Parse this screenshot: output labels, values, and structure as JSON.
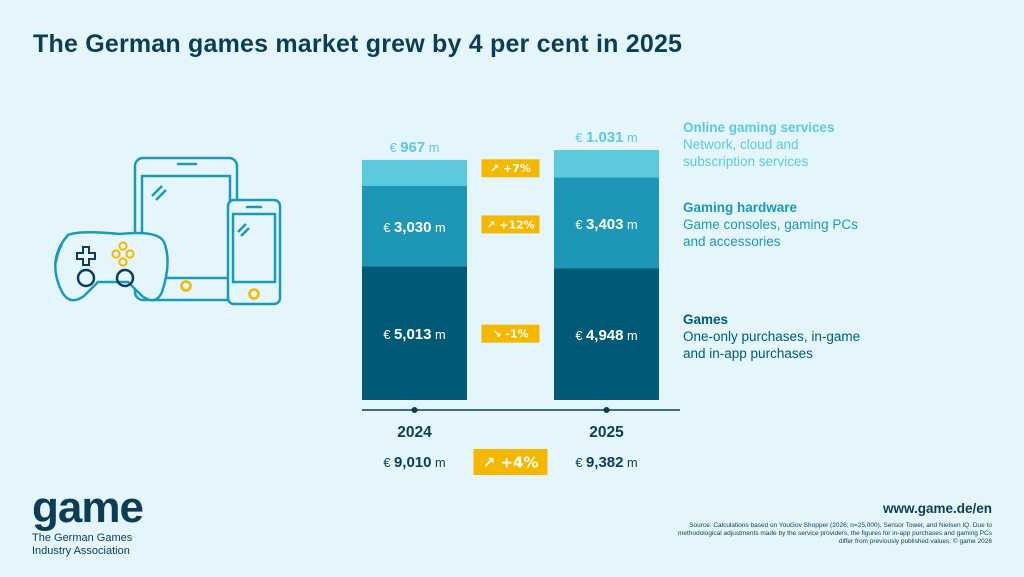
{
  "title": "The German games market grew by 4 per cent in 2025",
  "colors": {
    "background": "#e4f6fb",
    "online": "#5cc9dc",
    "hardware": "#1d97b5",
    "games": "#005a75",
    "badge": "#f5b800",
    "dark_text": "#0b3d55"
  },
  "chart_data": {
    "type": "bar",
    "stacked": true,
    "categories": [
      "2024",
      "2025"
    ],
    "unit_prefix": "€",
    "unit_suffix": "m",
    "series": [
      {
        "name": "Games",
        "description": "One-only purchases, in-game and in-app purchases",
        "values": [
          5013,
          4948
        ],
        "labels": [
          "5,013",
          "4,948"
        ],
        "change": "-1%",
        "direction": "down",
        "color": "#005a75"
      },
      {
        "name": "Gaming hardware",
        "description": "Game consoles, gaming PCs and accessories",
        "values": [
          3030,
          3403
        ],
        "labels": [
          "3,030",
          "3,403"
        ],
        "change": "+12%",
        "direction": "up",
        "color": "#1d97b5"
      },
      {
        "name": "Online gaming services",
        "description": "Network, cloud and subscription services",
        "values": [
          967,
          1031
        ],
        "labels": [
          "967",
          "1.031"
        ],
        "change": "+7%",
        "direction": "up",
        "color": "#5cc9dc"
      }
    ],
    "totals": {
      "values": [
        9010,
        9382
      ],
      "labels": [
        "9,010",
        "9,382"
      ],
      "change": "+4%",
      "direction": "up"
    },
    "ylim": [
      0,
      9382
    ]
  },
  "legend": {
    "online": {
      "title": "Online gaming services",
      "desc_lines": [
        "Network, cloud and",
        "subscription services"
      ]
    },
    "hardware": {
      "title": "Gaming hardware",
      "desc_lines": [
        "Game consoles, gaming PCs",
        "and accessories"
      ]
    },
    "games": {
      "title": "Games",
      "desc_lines": [
        "One-only purchases, in-game",
        "and in-app purchases"
      ]
    }
  },
  "logo": {
    "word": "game",
    "sub": "The German Games Industry Association"
  },
  "url": "www.game.de/en",
  "source": "Source: Calculations based on YouGov Shopper (2026; n=25,000), Sensor Tower, and Nielsen IQ. Due to methodological adjustments made by the service providers, the figures for in-app purchases and gaming PCs differ from previously published values.  © game 2026",
  "icons": [
    "gamepad-icon",
    "tablet-icon",
    "smartphone-icon"
  ]
}
